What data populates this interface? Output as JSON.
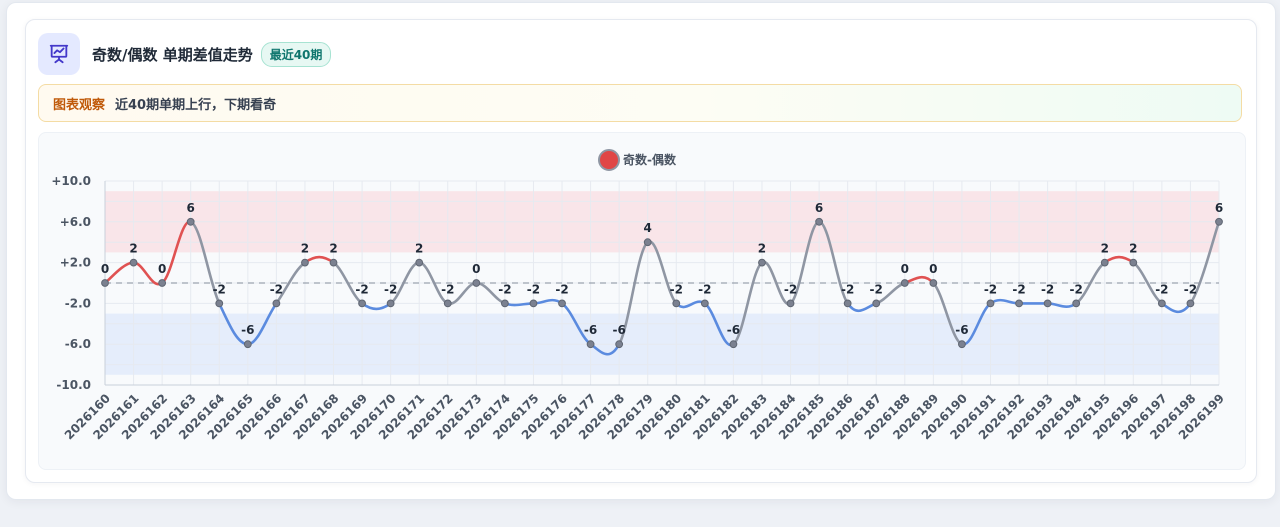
{
  "header": {
    "title": "奇数/偶数 单期差值走势",
    "badge": "最近40期",
    "icon": "chart-presentation-icon"
  },
  "observation": {
    "label": "图表观察",
    "text": "近40期单期上行，下期看奇"
  },
  "colors": {
    "accent": "#4f46e5",
    "positive_line": "#e05252",
    "negative_line": "#5b8bdf",
    "neutral_line": "#8f96a3",
    "upper_band": "#f9dde3",
    "lower_band": "#dfe8fb",
    "legend_dot": "#e04646"
  },
  "chart_data": {
    "type": "line",
    "legend": [
      "奇数-偶数"
    ],
    "series": [
      {
        "name": "奇数-偶数",
        "values": [
          0,
          2,
          0,
          6,
          -2,
          -6,
          -2,
          2,
          2,
          -2,
          -2,
          2,
          -2,
          0,
          -2,
          -2,
          -2,
          -6,
          -6,
          4,
          -2,
          -2,
          -6,
          2,
          -2,
          6,
          -2,
          -2,
          0,
          0,
          -6,
          -2,
          -2,
          -2,
          -2,
          2,
          2,
          -2,
          -2,
          6
        ]
      }
    ],
    "categories": [
      "2026160",
      "2026161",
      "2026162",
      "2026163",
      "2026164",
      "2026165",
      "2026166",
      "2026167",
      "2026168",
      "2026169",
      "2026170",
      "2026171",
      "2026172",
      "2026173",
      "2026174",
      "2026175",
      "2026176",
      "2026177",
      "2026178",
      "2026179",
      "2026180",
      "2026181",
      "2026182",
      "2026183",
      "2026184",
      "2026185",
      "2026186",
      "2026187",
      "2026188",
      "2026189",
      "2026190",
      "2026191",
      "2026192",
      "2026193",
      "2026194",
      "2026195",
      "2026196",
      "2026197",
      "2026198",
      "2026199"
    ],
    "yticks": [
      "+10.0",
      "+6.0",
      "+2.0",
      "-2.0",
      "-6.0",
      "-10.0"
    ],
    "ylim": [
      -10,
      10
    ],
    "bands": [
      {
        "from": 3,
        "to": 9,
        "color": "upper"
      },
      {
        "from": -9,
        "to": -3,
        "color": "lower"
      }
    ],
    "reference_line": 0,
    "grid": true,
    "legend_position": "top-center"
  }
}
